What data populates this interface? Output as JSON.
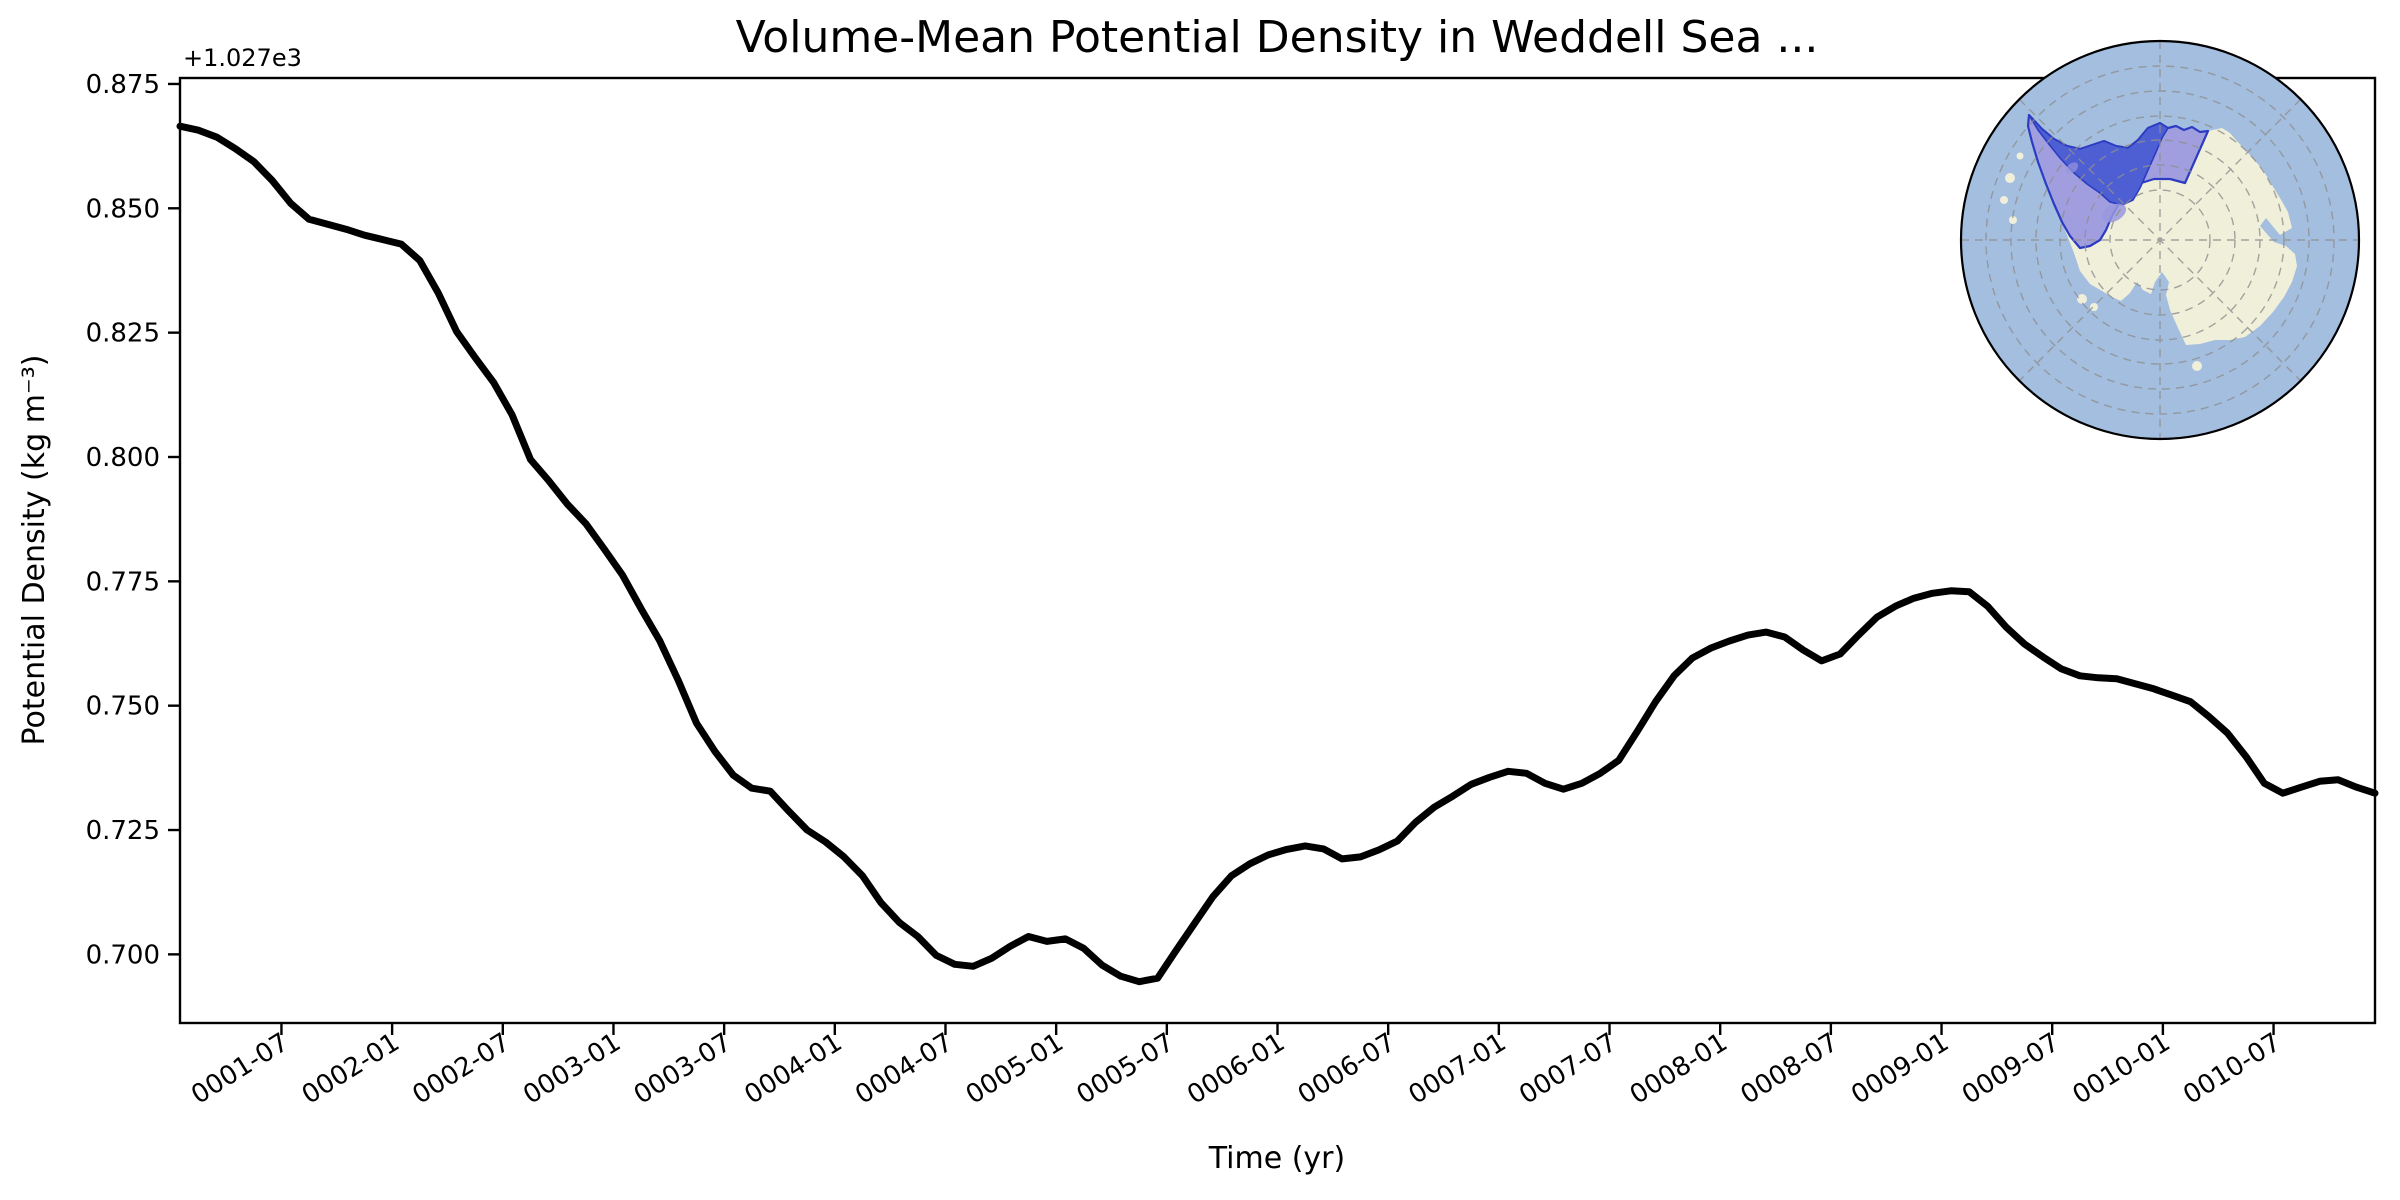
{
  "figure": {
    "background": "#ffffff"
  },
  "title": "Volume-Mean Potential Density in Weddell Sea ...",
  "axes": {
    "xlabel": "Time (yr)",
    "ylabel": "Potential Density (kg m⁻³)",
    "offset_text": "+1.027e3"
  },
  "chart_data": {
    "type": "line",
    "title": "Volume-Mean Potential Density in Weddell Sea ...",
    "xlabel": "Time (yr)",
    "ylabel": "Potential Density (kg m⁻³)",
    "y_offset_value": 1027,
    "y_offset_text": "+1.027e3",
    "x_start": "0001-01",
    "x_step": "1 month",
    "n_points": 120,
    "x_tick_labels": [
      "0001-07",
      "0002-01",
      "0002-07",
      "0003-01",
      "0003-07",
      "0004-01",
      "0004-07",
      "0005-01",
      "0005-07",
      "0006-01",
      "0006-07",
      "0007-01",
      "0007-07",
      "0008-01",
      "0008-07",
      "0009-01",
      "0009-07",
      "0010-01",
      "0010-07"
    ],
    "x_tick_month_index": [
      5.5,
      11.5,
      17.5,
      23.5,
      29.5,
      35.5,
      41.5,
      47.5,
      53.5,
      59.5,
      65.5,
      71.5,
      77.5,
      83.5,
      89.5,
      95.5,
      101.5,
      107.5,
      113.5
    ],
    "y_ticks": [
      0.7,
      0.725,
      0.75,
      0.775,
      0.8,
      0.825,
      0.85,
      0.875
    ],
    "y_tick_labels": [
      "0.700",
      "0.725",
      "0.750",
      "0.775",
      "0.800",
      "0.825",
      "0.850",
      "0.875"
    ],
    "ylim": [
      0.6862,
      0.8762
    ],
    "grid": false,
    "legend": null,
    "line_color": "#000000",
    "line_width": 7,
    "values": [
      0.8665,
      0.8657,
      0.8643,
      0.862,
      0.8594,
      0.8556,
      0.851,
      0.8478,
      0.8468,
      0.8458,
      0.8446,
      0.8437,
      0.8428,
      0.8395,
      0.833,
      0.8252,
      0.82,
      0.815,
      0.8085,
      0.7995,
      0.7952,
      0.7905,
      0.7866,
      0.7815,
      0.7762,
      0.7695,
      0.7631,
      0.7552,
      0.7465,
      0.7408,
      0.736,
      0.7334,
      0.7328,
      0.7288,
      0.725,
      0.7226,
      0.7196,
      0.7158,
      0.7104,
      0.7064,
      0.7036,
      0.6998,
      0.698,
      0.6976,
      0.6992,
      0.7016,
      0.7036,
      0.7026,
      0.7031,
      0.7012,
      0.6978,
      0.6956,
      0.6945,
      0.6952,
      0.7008,
      0.7062,
      0.7116,
      0.7158,
      0.7182,
      0.72,
      0.7211,
      0.7218,
      0.7212,
      0.7192,
      0.7196,
      0.721,
      0.7228,
      0.7266,
      0.7296,
      0.7318,
      0.7342,
      0.7356,
      0.7368,
      0.7364,
      0.7344,
      0.7332,
      0.7344,
      0.7364,
      0.739,
      0.7448,
      0.7508,
      0.756,
      0.7596,
      0.7616,
      0.763,
      0.7642,
      0.7648,
      0.7638,
      0.7612,
      0.759,
      0.7604,
      0.7642,
      0.7678,
      0.77,
      0.7716,
      0.7726,
      0.7731,
      0.7729,
      0.77,
      0.7658,
      0.7624,
      0.7598,
      0.7574,
      0.756,
      0.7556,
      0.7554,
      0.7544,
      0.7534,
      0.7521,
      0.7508,
      0.7478,
      0.7445,
      0.7398,
      0.7344,
      0.7324,
      0.7336,
      0.7348,
      0.7351,
      0.7336,
      0.7324
    ]
  },
  "inset_map": {
    "description": "South polar stereographic map, Weddell Sea sector highlighted",
    "colors": {
      "ocean": "#a3bedf",
      "land": "#f0efda",
      "region_over_land": "#9997de",
      "region_sea": "#4e5fd3",
      "region_border": "#2c3cc2",
      "graticule": "#8f8f8f",
      "map_border": "#000000"
    }
  },
  "layout_note": "single axes, black 7px line, no grid, inset map top-right"
}
